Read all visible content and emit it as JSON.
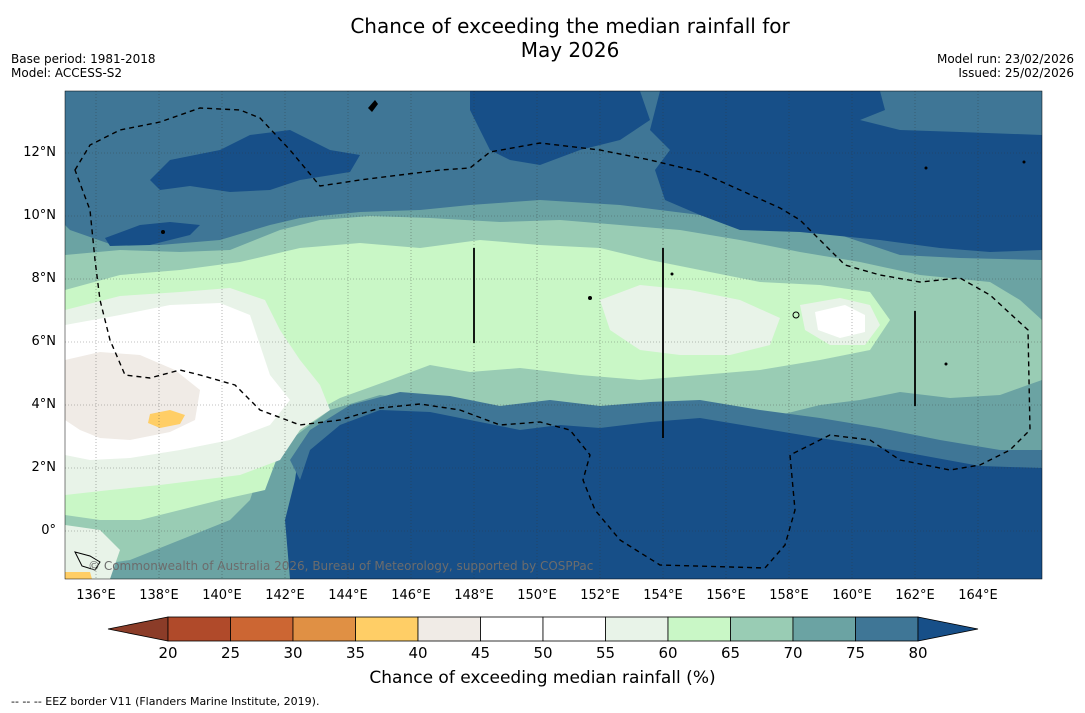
{
  "title": {
    "line1": "Chance of exceeding the median rainfall for",
    "line2": "May 2026"
  },
  "meta": {
    "base_period": "Base period: 1981-2018",
    "model": "Model: ACCESS-S2",
    "model_run": "Model run: 23/02/2026",
    "issued": "Issued: 25/02/2026"
  },
  "map": {
    "lon_ticks": [
      "136°E",
      "138°E",
      "140°E",
      "142°E",
      "144°E",
      "146°E",
      "148°E",
      "150°E",
      "152°E",
      "154°E",
      "156°E",
      "158°E",
      "160°E",
      "162°E",
      "164°E"
    ],
    "lat_ticks": [
      "12°N",
      "10°N",
      "8°N",
      "6°N",
      "4°N",
      "2°N",
      "0°"
    ],
    "copyright": "© Commonwealth of Australia 2026, Bureau of Meteorology, supported by COSPPac"
  },
  "colorbar": {
    "labels": [
      "20",
      "25",
      "30",
      "35",
      "40",
      "45",
      "50",
      "55",
      "60",
      "65",
      "70",
      "75",
      "80"
    ],
    "colors": [
      "#8b3c28",
      "#b04a2a",
      "#cc6633",
      "#e09044",
      "#ffce66",
      "#f0ebe6",
      "#ffffff",
      "#ffffff",
      "#e8f3e8",
      "#c9f7c6",
      "#99ccb4",
      "#6ba3a3",
      "#3f7696",
      "#174f88"
    ],
    "title": "Chance of exceeding median rainfall (%)"
  },
  "footnote": "--  --  -- EEZ border V11 (Flanders Marine Institute, 2019)."
}
